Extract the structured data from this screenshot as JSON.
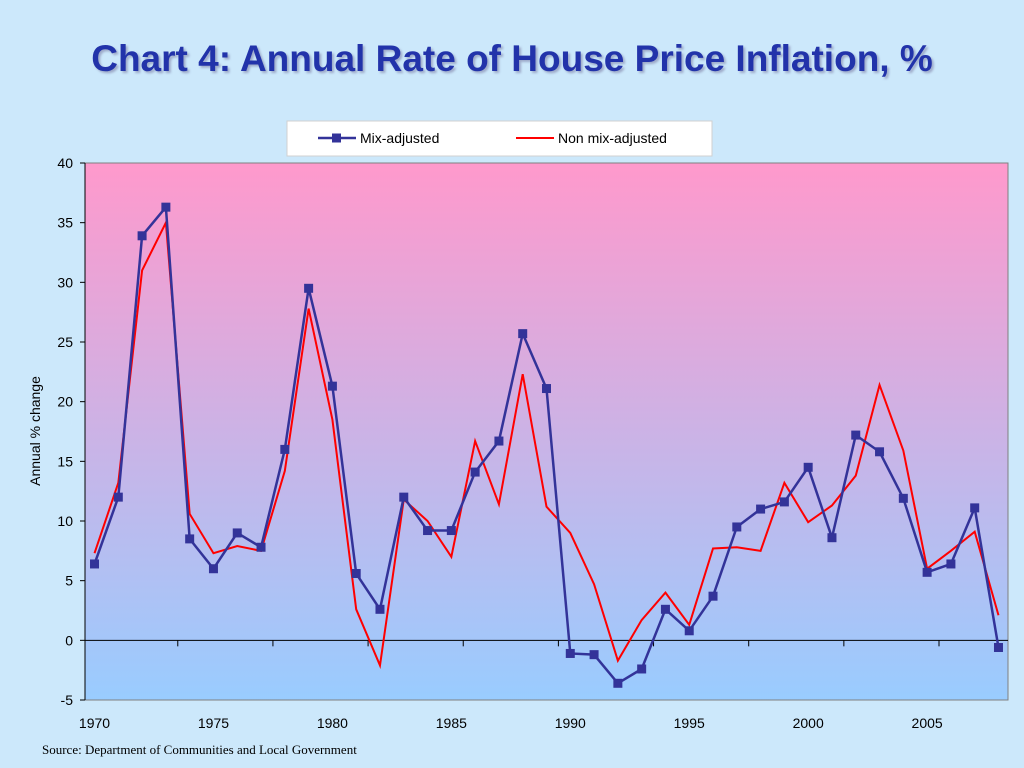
{
  "title": "Chart 4: Annual Rate of House Price Inflation, %",
  "source": "Source: Department of Communities and Local Government",
  "chart_data": {
    "type": "line",
    "title": "Chart 4: Annual Rate of House Price Inflation, %",
    "xlabel": "",
    "ylabel": "Annual % change",
    "xlim": [
      1970,
      2008
    ],
    "ylim": [
      -5,
      40
    ],
    "yticks": [
      -5,
      0,
      5,
      10,
      15,
      20,
      25,
      30,
      35,
      40
    ],
    "xticks": [
      1970,
      1975,
      1980,
      1985,
      1990,
      1995,
      2000,
      2005
    ],
    "legend_position": "top",
    "background_gradient": [
      "#ff99cc",
      "#99ccff"
    ],
    "x": [
      1970,
      1971,
      1972,
      1973,
      1974,
      1975,
      1976,
      1977,
      1978,
      1979,
      1980,
      1981,
      1982,
      1983,
      1984,
      1985,
      1986,
      1987,
      1988,
      1989,
      1990,
      1991,
      1992,
      1993,
      1994,
      1995,
      1996,
      1997,
      1998,
      1999,
      2000,
      2001,
      2002,
      2003,
      2004,
      2005,
      2006,
      2007,
      2008
    ],
    "series": [
      {
        "name": "Mix-adjusted",
        "color": "#333399",
        "marker": "square",
        "values": [
          6.4,
          12.0,
          33.9,
          36.3,
          8.5,
          6.0,
          9.0,
          7.8,
          16.0,
          29.5,
          21.3,
          5.6,
          2.6,
          12.0,
          9.2,
          9.2,
          14.1,
          16.7,
          25.7,
          21.1,
          -1.1,
          -1.2,
          -3.6,
          -2.4,
          2.6,
          0.8,
          3.7,
          9.5,
          11.0,
          11.6,
          14.5,
          8.6,
          17.2,
          15.8,
          11.9,
          5.7,
          6.4,
          11.1,
          -0.6
        ]
      },
      {
        "name": "Non mix-adjusted",
        "color": "#ff0000",
        "marker": "none",
        "values": [
          7.3,
          13.2,
          31.0,
          35.0,
          10.6,
          7.3,
          7.9,
          7.5,
          14.2,
          27.8,
          18.5,
          2.6,
          -2.1,
          11.8,
          10.0,
          7.0,
          16.7,
          11.4,
          22.3,
          11.2,
          9.0,
          4.7,
          -1.7,
          1.7,
          4.0,
          1.3,
          7.7,
          7.8,
          7.5,
          13.2,
          9.9,
          11.3,
          13.8,
          21.4,
          15.9,
          6.0,
          7.5,
          9.1,
          2.1
        ]
      }
    ]
  }
}
